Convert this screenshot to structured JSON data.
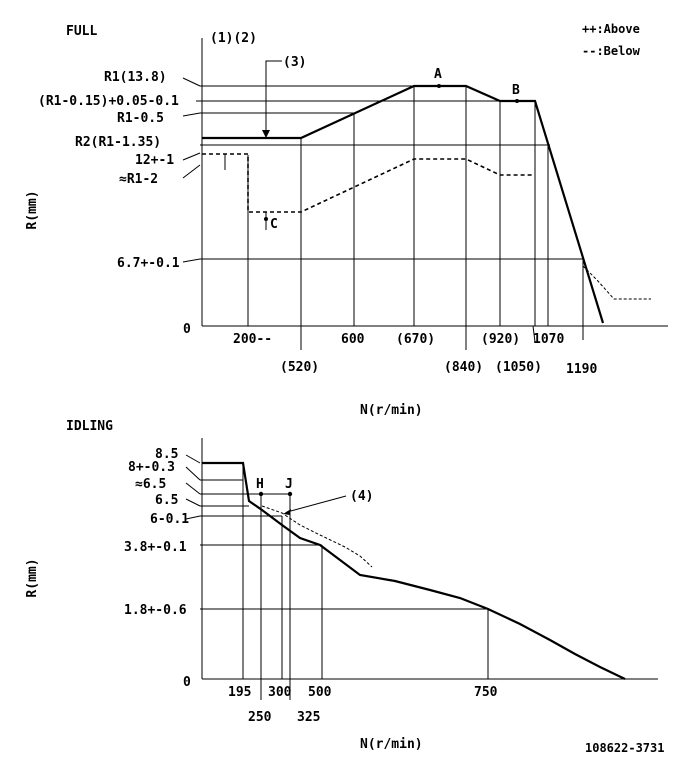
{
  "full": {
    "title": "FULL",
    "top_label": "(1)(2)",
    "legend_above": "++:Above",
    "legend_below": "--:Below",
    "y_axis_title": "R(mm)",
    "x_axis_title": "N(r/min)",
    "y_labels": [
      "R1(13.8)",
      "(R1-0.15)+0.05-0.1",
      "R1-0.5",
      "R2(R1-1.35)",
      "12+-1",
      "≈R1-2",
      "6.7+-0.1",
      "0"
    ],
    "x_labels": [
      "200--",
      "(520)",
      "600",
      "(670)",
      "(840)",
      "(920)",
      "(1050)",
      "1070",
      "1190"
    ],
    "point_a": "A",
    "point_b": "B",
    "point_c": "C",
    "callout_3": "(3)"
  },
  "idling": {
    "title": "IDLING",
    "y_axis_title": "R(mm)",
    "x_axis_title": "N(r/min)",
    "y_labels": [
      "8.5",
      "8+-0.3",
      "≈6.5",
      "6.5",
      "6-0.1",
      "3.8+-0.1",
      "1.8+-0.6",
      "0"
    ],
    "x_labels": [
      "195",
      "250",
      "300",
      "325",
      "500",
      "750"
    ],
    "point_h": "H",
    "point_j": "J",
    "callout_4": "(4)"
  },
  "part_number": "108622-3731"
}
